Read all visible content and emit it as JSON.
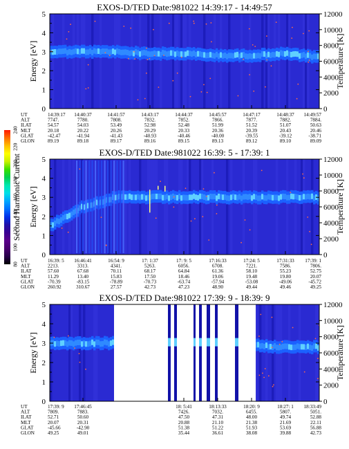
{
  "colors": {
    "background": "#2a2ad2",
    "band": "#1b60ff",
    "band_core": "#2f8aff",
    "band_hot": "#5fd0ff",
    "dark_stripe": "#1212a8",
    "gap": "#ffffff",
    "overlay_points": "#ff6a4a",
    "colorbar": [
      "#000000",
      "#28004a",
      "#48006e",
      "#5a008a",
      "#3a0090",
      "#2010a8",
      "#0030e8",
      "#0070ff",
      "#00a8ff",
      "#00e0e8",
      "#00e8b0",
      "#00d050",
      "#38e000",
      "#c8f000",
      "#ffff00",
      "#ffc000",
      "#ff7000",
      "#ff1800"
    ]
  },
  "colorbar": {
    "label": "Second Harmonic Current",
    "ticks": [
      "240",
      "220",
      "200",
      "180",
      "160",
      "140",
      "120",
      "100",
      "80"
    ]
  },
  "panels": [
    {
      "title": "EXOS-D/TED   Date:981022  14:39:17 - 14:49:57",
      "ylabel": "Energy [eV]",
      "y2label": "Temperature [K]",
      "yticks": [
        "5",
        "4",
        "3",
        "2",
        "1",
        "0"
      ],
      "y2ticks": [
        "12000",
        "10000",
        "8000",
        "6000",
        "4000",
        "2000",
        "0"
      ],
      "row_labels": [
        "UT",
        "ALT",
        "ILAT",
        "MLT",
        "GLAT",
        "GLON"
      ],
      "columns": [
        [
          "14:39:17",
          "7747.",
          "54.57",
          "20.18",
          "-42.47",
          "89.19"
        ],
        [
          "14:40:37",
          "7780.",
          "54.03",
          "20.22",
          "-41.94",
          "89.18"
        ],
        [
          "14:41:57",
          "7808.",
          "53.49",
          "20.26",
          "-41.43",
          "89.17"
        ],
        [
          "14:43:17",
          "7832.",
          "52.98",
          "20.29",
          "-40.93",
          "89.16"
        ],
        [
          "14:44:37",
          "7852.",
          "52.48",
          "20.33",
          "-40.46",
          "89.15"
        ],
        [
          "14:45:57",
          "7866.",
          "51.99",
          "20.36",
          "-40.00",
          "89.13"
        ],
        [
          "14:47:17",
          "7877.",
          "51.52",
          "20.39",
          "-39.55",
          "89.12"
        ],
        [
          "14:48:37",
          "7882.",
          "51.07",
          "20.43",
          "-39.12",
          "89.10"
        ],
        [
          "14:49:57",
          "7884.",
          "50.63",
          "20.46",
          "-38.71",
          "89.09"
        ]
      ]
    },
    {
      "title": "EXOS-D/TED   Date:981022  16:39: 5 - 17:39: 1",
      "ylabel": "Energy [eV]",
      "y2label": "Temperature [K]",
      "yticks": [
        "5",
        "4",
        "3",
        "2",
        "1",
        "0"
      ],
      "y2ticks": [
        "12000",
        "10000",
        "8000",
        "6000",
        "4000",
        "2000",
        "0"
      ],
      "row_labels": [
        "UT",
        "ALT",
        "ILAT",
        "MLT",
        "GLAT",
        "GLON"
      ],
      "columns": [
        [
          "16:39: 5",
          "2213.",
          "57.60",
          "11.29",
          "-70.39",
          "260.92"
        ],
        [
          "16:46:41",
          "3313.",
          "67.68",
          "13.40",
          "-83.15",
          "310.67"
        ],
        [
          "16:54: 9",
          "4341.",
          "70.11",
          "15.83",
          "-78.89",
          "27.57"
        ],
        [
          "17: 1:37",
          "5263.",
          "68.17",
          "17.50",
          "-70.73",
          "42.73"
        ],
        [
          "17: 9: 5",
          "6056.",
          "64.84",
          "18.46",
          "-63.74",
          "47.23"
        ],
        [
          "17:16:33",
          "6708.",
          "61.36",
          "19.06",
          "-57.94",
          "48.90"
        ],
        [
          "17:24: 5",
          "7221.",
          "58.10",
          "19.48",
          "-53.08",
          "49.44"
        ],
        [
          "17:31:33",
          "7586.",
          "55.23",
          "19.80",
          "-49.06",
          "49.46"
        ],
        [
          "17:39: 1",
          "7806.",
          "52.75",
          "20.07",
          "-45.72",
          "49.25"
        ]
      ]
    },
    {
      "title": "EXOS-D/TED   Date:981022  17:39: 9 - 18:39: 9",
      "ylabel": "Energy [eV]",
      "y2label": "Temperature [K]",
      "yticks": [
        "5",
        "4",
        "3",
        "2",
        "1",
        "0"
      ],
      "y2ticks": [
        "12000",
        "10000",
        "8000",
        "6000",
        "4000",
        "2000",
        "0"
      ],
      "row_labels": [
        "UT",
        "ALT",
        "ILAT",
        "MLT",
        "GLAT",
        "GLON"
      ],
      "columns": [
        [
          "17:39: 9",
          "7809.",
          "52.71",
          "20.07",
          "-45.66",
          "49.25"
        ],
        [
          "17:46:45",
          "7883.",
          "50.60",
          "20.31",
          "-42.90",
          "49.01"
        ],
        [
          "",
          "",
          "",
          "",
          "",
          ""
        ],
        [
          "",
          "",
          "",
          "",
          "",
          ""
        ],
        [
          "18: 5:41",
          "7426.",
          "47.50",
          "20.88",
          "51.38",
          "35.44"
        ],
        [
          "18:13:33",
          "7032.",
          "47.31",
          "21.10",
          "51.22",
          "36.61"
        ],
        [
          "18:20: 9",
          "6455.",
          "48.00",
          "21.38",
          "51.93",
          "38.08"
        ],
        [
          "18:27: 1",
          "5807.",
          "49.74",
          "21.69",
          "53.69",
          "39.88"
        ],
        [
          "18:33:49",
          "5051.",
          "52.88",
          "22.11",
          "56.88",
          "42.73"
        ]
      ]
    }
  ],
  "chart_data": [
    {
      "type": "heatmap",
      "title": "EXOS-D/TED   Date:981022  14:39:17 - 14:49:57",
      "ylabel": "Energy [eV]",
      "y2label": "Temperature [K]",
      "ylim": [
        0,
        5
      ],
      "y2lim": [
        0,
        12000
      ],
      "x": [
        "14:39:17",
        "14:40:37",
        "14:41:57",
        "14:43:17",
        "14:44:37",
        "14:45:57",
        "14:47:17",
        "14:48:37",
        "14:49:57"
      ],
      "band_energy_ev": [
        3.0,
        3.0,
        3.0,
        2.9,
        2.9,
        2.8,
        2.8,
        2.9,
        2.7
      ],
      "data_gaps": []
    },
    {
      "type": "heatmap",
      "title": "EXOS-D/TED   Date:981022  16:39: 5 - 17:39: 1",
      "ylabel": "Energy [eV]",
      "y2label": "Temperature [K]",
      "ylim": [
        0,
        5
      ],
      "y2lim": [
        0,
        12000
      ],
      "x": [
        "16:39: 5",
        "16:46:41",
        "16:54: 9",
        "17: 1:37",
        "17: 9: 5",
        "17:16:33",
        "17:24: 5",
        "17:31:33",
        "17:39: 1"
      ],
      "band_energy_ev": [
        1.5,
        2.5,
        3.0,
        3.0,
        3.0,
        3.0,
        3.0,
        3.0,
        3.0
      ],
      "data_gaps": []
    },
    {
      "type": "heatmap",
      "title": "EXOS-D/TED   Date:981022  17:39: 9 - 18:39: 9",
      "ylabel": "Energy [eV]",
      "y2label": "Temperature [K]",
      "ylim": [
        0,
        5
      ],
      "y2lim": [
        0,
        12000
      ],
      "x": [
        "17:39: 9",
        "17:46:45",
        "18: 5:41",
        "18:13:33",
        "18:20: 9",
        "18:27: 1",
        "18:33:49"
      ],
      "band_energy_ev": [
        3.0,
        3.0,
        3.0,
        3.0,
        3.0,
        2.9,
        2.8
      ],
      "data_gaps": [
        [
          "17:47:30",
          "18: 4:40"
        ],
        [
          "18:21: 0",
          "18:26:30"
        ]
      ]
    }
  ]
}
